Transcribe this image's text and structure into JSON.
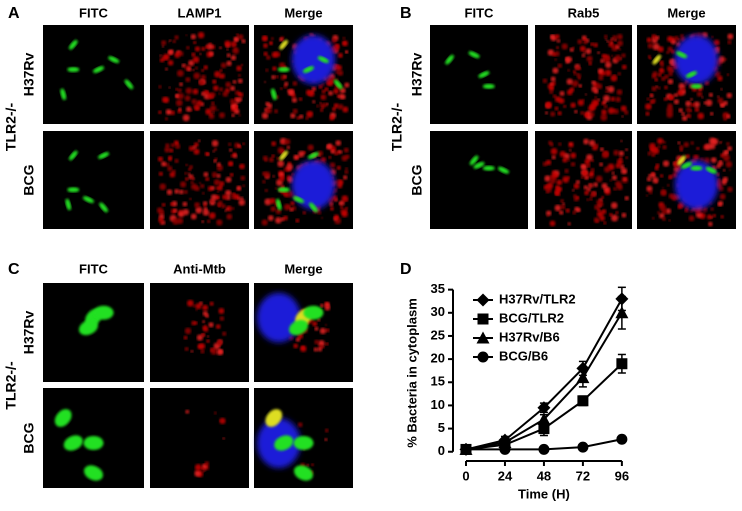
{
  "panels": [
    {
      "label": "A",
      "columns": [
        "FITC",
        "LAMP1",
        "Merge"
      ],
      "rows": [
        "H37Rv",
        "BCG"
      ],
      "group": "TLR2-/-"
    },
    {
      "label": "B",
      "columns": [
        "FITC",
        "Rab5",
        "Merge"
      ],
      "rows": [
        "H37Rv",
        "BCG"
      ],
      "group": "TLR2-/-"
    },
    {
      "label": "C",
      "columns": [
        "FITC",
        "Anti-Mtb",
        "Merge"
      ],
      "rows": [
        "H37Rv",
        "BCG"
      ],
      "group": "TLR2-/-"
    }
  ],
  "chart_label": "D",
  "chart_data": {
    "type": "line",
    "xlabel": "Time (H)",
    "ylabel": "% Bacteria in cytoplasm",
    "x": [
      0,
      24,
      48,
      72,
      96
    ],
    "xlim": [
      -8,
      101
    ],
    "xticks": [
      0,
      24,
      48,
      72,
      96
    ],
    "ylim": [
      -2,
      36
    ],
    "yticks": [
      0,
      5,
      10,
      15,
      20,
      25,
      30,
      35
    ],
    "legend": "upper left",
    "series": [
      {
        "name": "H37Rv/TLR2",
        "color": "#000000",
        "marker": "diamond",
        "values": [
          0.5,
          2.5,
          9.5,
          18,
          33
        ],
        "errors": [
          0.3,
          0.8,
          1,
          1.5,
          2.5
        ]
      },
      {
        "name": "BCG/TLR2",
        "color": "#000000",
        "marker": "square",
        "values": [
          0.5,
          1.5,
          5,
          11,
          19
        ],
        "errors": [
          0.2,
          0.5,
          1.5,
          1,
          2
        ]
      },
      {
        "name": "H37Rv/B6",
        "color": "#000000",
        "marker": "triangle",
        "values": [
          0.5,
          2,
          7,
          16,
          30
        ],
        "errors": [
          0.3,
          0.5,
          1,
          2,
          3.5
        ]
      },
      {
        "name": "BCG/B6",
        "color": "#000000",
        "marker": "circle",
        "values": [
          0.5,
          0.5,
          0.5,
          1,
          2.7
        ],
        "errors": [
          0.2,
          0.2,
          0.3,
          0.3,
          0.4
        ]
      }
    ]
  }
}
